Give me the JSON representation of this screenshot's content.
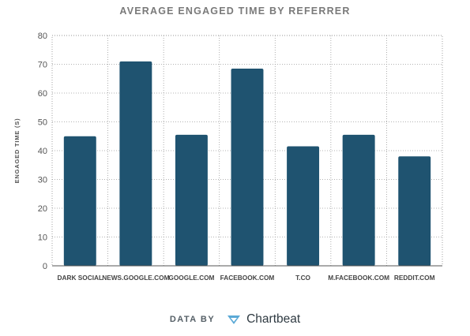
{
  "chart_data": {
    "type": "bar",
    "title": "AVERAGE ENGAGED TIME BY REFERRER",
    "xlabel": "",
    "ylabel": "ENGAGED TIME (S)",
    "categories": [
      "DARK SOCIAL",
      "NEWS.GOOGLE.COM",
      "GOOGLE.COM",
      "FACEBOOK.COM",
      "T.CO",
      "M.FACEBOOK.COM",
      "REDDIT.COM"
    ],
    "values": [
      45,
      71,
      45.5,
      68.5,
      41.5,
      45.5,
      38
    ],
    "ylim": [
      0,
      80
    ],
    "yticks": [
      0,
      10,
      20,
      30,
      40,
      50,
      60,
      70,
      80
    ],
    "grid": true,
    "legend": "none",
    "bar_color": "#1f5370"
  },
  "credit": {
    "prefix": "DATA BY",
    "brand": "Chartbeat",
    "logo_icon": "chartbeat-logo-icon",
    "logo_color": "#5aa9d6"
  }
}
